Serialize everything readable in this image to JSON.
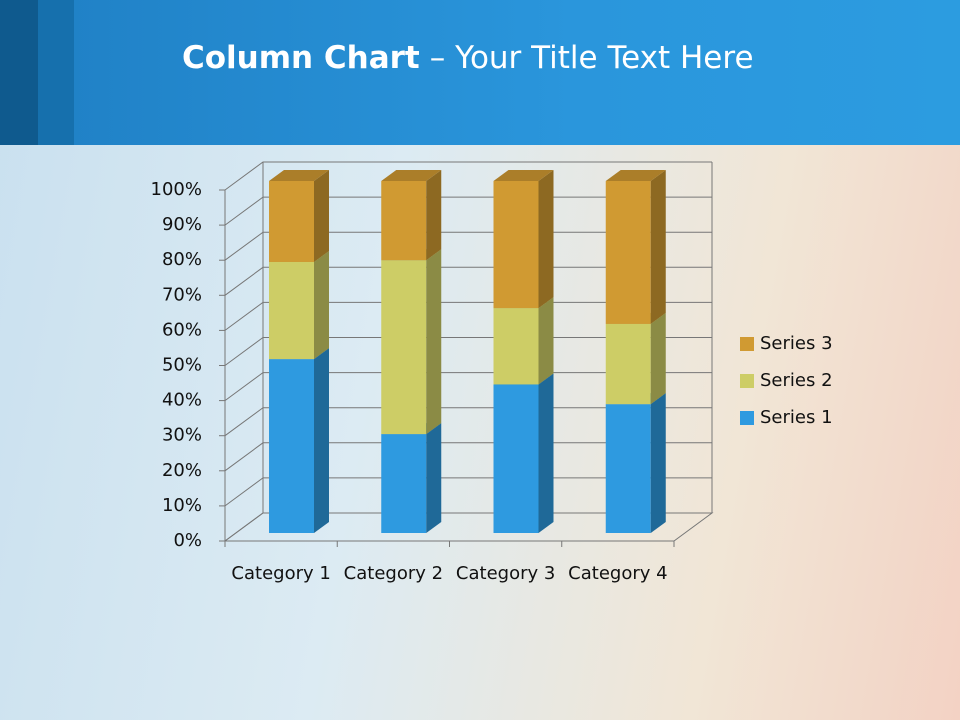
{
  "chart_data": {
    "type": "bar3d_stacked_percent",
    "title_parts": [
      "Column Chart",
      "– Your Title Text Here"
    ],
    "categories": [
      "Category 1",
      "Category 2",
      "Category 3",
      "Category 4"
    ],
    "series": [
      {
        "name": "Series 1",
        "color": "#2e9ae0",
        "values": [
          49.4,
          28.1,
          42.2,
          36.6
        ]
      },
      {
        "name": "Series 2",
        "color": "#cdcd66",
        "values": [
          27.6,
          49.4,
          21.7,
          22.8
        ]
      },
      {
        "name": "Series 3",
        "color": "#d09a32",
        "values": [
          23.0,
          22.5,
          36.1,
          40.6
        ]
      }
    ],
    "ylim": [
      0,
      100
    ],
    "yticks": [
      {
        "value": 0,
        "label": "0%"
      },
      {
        "value": 10,
        "label": "10%"
      },
      {
        "value": 20,
        "label": "20%"
      },
      {
        "value": 30,
        "label": "30%"
      },
      {
        "value": 40,
        "label": "40%"
      },
      {
        "value": 50,
        "label": "50%"
      },
      {
        "value": 60,
        "label": "60%"
      },
      {
        "value": 70,
        "label": "70%"
      },
      {
        "value": 80,
        "label": "80%"
      },
      {
        "value": 90,
        "label": "90%"
      },
      {
        "value": 100,
        "label": "100%"
      }
    ],
    "grid": true,
    "legend": "right"
  }
}
